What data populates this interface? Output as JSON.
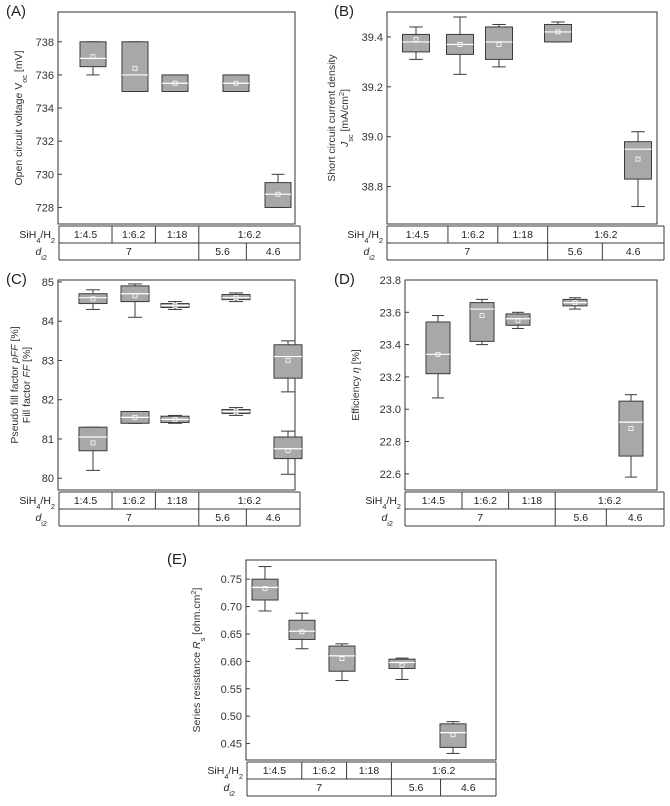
{
  "chart_data": [
    {
      "panel_label": "(A)",
      "type": "box",
      "ylabel_parts": [
        "Open circuit voltage V",
        "oc",
        " [mV]"
      ],
      "ylim": [
        727,
        739.8
      ],
      "yticks": [
        728,
        730,
        732,
        734,
        736,
        738
      ],
      "tick_decimals": 0,
      "table": {
        "row1_label": [
          "SiH",
          "4",
          "/H",
          "2"
        ],
        "row1_cells": [
          "1:4.5",
          "1:6.2",
          "1:18",
          "1:6.2"
        ],
        "row2_label": [
          "d",
          "i2"
        ],
        "row2_cells": [
          "7",
          "5.6",
          "4.6"
        ]
      },
      "groups": [
        {
          "category": "1:4.5 / 7",
          "whisker_low": 736,
          "q1": 736.5,
          "median": 737,
          "q3": 738,
          "whisker_high": 738,
          "mean": 737.1
        },
        {
          "category": "1:6.2 / 7",
          "whisker_low": 735,
          "q1": 735,
          "median": 736,
          "q3": 738,
          "whisker_high": 738,
          "mean": 736.4
        },
        {
          "category": "1:18 / 7",
          "whisker_low": 735,
          "q1": 735,
          "median": 735.5,
          "q3": 736,
          "whisker_high": 736,
          "mean": 735.5
        },
        {
          "category": "1:6.2 / 5.6",
          "whisker_low": 735,
          "q1": 735,
          "median": 735.5,
          "q3": 736,
          "whisker_high": 736,
          "mean": 735.5
        },
        {
          "category": "1:6.2 / 4.6",
          "whisker_low": 728,
          "q1": 728,
          "median": 728.8,
          "q3": 729.5,
          "whisker_high": 730,
          "mean": 728.8
        }
      ]
    },
    {
      "panel_label": "(B)",
      "type": "box",
      "ylabel_parts": [
        "Short circuit current density",
        "J",
        "sc",
        " [mA/cm",
        "2",
        "]"
      ],
      "ylim": [
        38.65,
        39.5
      ],
      "yticks": [
        38.8,
        39.0,
        39.2,
        39.4
      ],
      "tick_decimals": 1,
      "table": {
        "row1_label": [
          "SiH",
          "4",
          "/H",
          "2"
        ],
        "row1_cells": [
          "1:4.5",
          "1:6.2",
          "1:18",
          "1:6.2"
        ],
        "row2_label": [
          "d",
          "i2"
        ],
        "row2_cells": [
          "7",
          "5.6",
          "4.6"
        ]
      },
      "groups": [
        {
          "category": "1:4.5 / 7",
          "whisker_low": 39.31,
          "q1": 39.34,
          "median": 39.38,
          "q3": 39.41,
          "whisker_high": 39.44,
          "mean": 39.39
        },
        {
          "category": "1:6.2 / 7",
          "whisker_low": 39.25,
          "q1": 39.33,
          "median": 39.37,
          "q3": 39.41,
          "whisker_high": 39.48,
          "mean": 39.37
        },
        {
          "category": "1:18 / 7",
          "whisker_low": 39.28,
          "q1": 39.31,
          "median": 39.38,
          "q3": 39.44,
          "whisker_high": 39.45,
          "mean": 39.37
        },
        {
          "category": "1:6.2 / 5.6",
          "whisker_low": 39.38,
          "q1": 39.38,
          "median": 39.42,
          "q3": 39.45,
          "whisker_high": 39.46,
          "mean": 39.42
        },
        {
          "category": "1:6.2 / 4.6",
          "whisker_low": 38.72,
          "q1": 38.83,
          "median": 38.95,
          "q3": 38.98,
          "whisker_high": 39.02,
          "mean": 38.91
        }
      ]
    },
    {
      "panel_label": "(C)",
      "type": "box",
      "ylabel_parts": [
        "Pseudo fill factor ",
        "pFF",
        " [%]"
      ],
      "ylabel2_parts": [
        "Fill factor ",
        "FF",
        " [%]"
      ],
      "ylim": [
        79.7,
        85.05
      ],
      "yticks": [
        80,
        81,
        82,
        83,
        84,
        85
      ],
      "tick_decimals": 0,
      "table": {
        "row1_label": [
          "SiH",
          "4",
          "/H",
          "2"
        ],
        "row1_cells": [
          "1:4.5",
          "1:6.2",
          "1:18",
          "1:6.2"
        ],
        "row2_label": [
          "d",
          "i2"
        ],
        "row2_cells": [
          "7",
          "5.6",
          "4.6"
        ]
      },
      "groups": [
        {
          "category": "1:4.5 / 7 (pFF)",
          "whisker_low": 84.3,
          "q1": 84.45,
          "median": 84.6,
          "q3": 84.7,
          "whisker_high": 84.8,
          "mean": 84.57
        },
        {
          "category": "1:6.2 / 7 (pFF)",
          "whisker_low": 84.1,
          "q1": 84.5,
          "median": 84.7,
          "q3": 84.9,
          "whisker_high": 84.95,
          "mean": 84.65
        },
        {
          "category": "1:18 / 7 (pFF)",
          "whisker_low": 84.3,
          "q1": 84.35,
          "median": 84.4,
          "q3": 84.45,
          "whisker_high": 84.5,
          "mean": 84.4
        },
        {
          "category": "1:6.2 / 5.6 (pFF)",
          "whisker_low": 84.5,
          "q1": 84.55,
          "median": 84.6,
          "q3": 84.68,
          "whisker_high": 84.72,
          "mean": 84.6
        },
        {
          "category": "1:6.2 / 4.6 (pFF)",
          "whisker_low": 82.2,
          "q1": 82.55,
          "median": 83.1,
          "q3": 83.4,
          "whisker_high": 83.5,
          "mean": 83.0
        },
        {
          "category": "1:4.5 / 7 (FF)",
          "whisker_low": 80.2,
          "q1": 80.7,
          "median": 81.05,
          "q3": 81.3,
          "whisker_high": 81.3,
          "mean": 80.9
        },
        {
          "category": "1:6.2 / 7 (FF)",
          "whisker_low": 81.4,
          "q1": 81.4,
          "median": 81.55,
          "q3": 81.7,
          "whisker_high": 81.7,
          "mean": 81.55
        },
        {
          "category": "1:18 / 7 (FF)",
          "whisker_low": 81.4,
          "q1": 81.42,
          "median": 81.5,
          "q3": 81.58,
          "whisker_high": 81.6,
          "mean": 81.5
        },
        {
          "category": "1:6.2 / 5.6 (FF)",
          "whisker_low": 81.6,
          "q1": 81.65,
          "median": 81.7,
          "q3": 81.75,
          "whisker_high": 81.8,
          "mean": 81.7
        },
        {
          "category": "1:6.2 / 4.6 (FF)",
          "whisker_low": 80.1,
          "q1": 80.5,
          "median": 80.75,
          "q3": 81.05,
          "whisker_high": 81.2,
          "mean": 80.7
        }
      ]
    },
    {
      "panel_label": "(D)",
      "type": "box",
      "ylabel_parts": [
        "Efficiency ",
        "η",
        " [%]"
      ],
      "ylim": [
        22.5,
        23.8
      ],
      "yticks": [
        22.6,
        22.8,
        23.0,
        23.2,
        23.4,
        23.6,
        23.8
      ],
      "tick_decimals": 1,
      "table": {
        "row1_label": [
          "SiH",
          "4",
          "/H",
          "2"
        ],
        "row1_cells": [
          "1:4.5",
          "1:6.2",
          "1:18",
          "1:6.2"
        ],
        "row2_label": [
          "d",
          "i2"
        ],
        "row2_cells": [
          "7",
          "5.6",
          "4.6"
        ]
      },
      "groups": [
        {
          "category": "1:4.5 / 7",
          "whisker_low": 23.07,
          "q1": 23.22,
          "median": 23.34,
          "q3": 23.54,
          "whisker_high": 23.58,
          "mean": 23.34
        },
        {
          "category": "1:6.2 / 7",
          "whisker_low": 23.4,
          "q1": 23.42,
          "median": 23.62,
          "q3": 23.66,
          "whisker_high": 23.68,
          "mean": 23.58
        },
        {
          "category": "1:18 / 7",
          "whisker_low": 23.5,
          "q1": 23.52,
          "median": 23.56,
          "q3": 23.59,
          "whisker_high": 23.6,
          "mean": 23.55
        },
        {
          "category": "1:6.2 / 5.6",
          "whisker_low": 23.62,
          "q1": 23.64,
          "median": 23.66,
          "q3": 23.68,
          "whisker_high": 23.69,
          "mean": 23.66
        },
        {
          "category": "1:6.2 / 4.6",
          "whisker_low": 22.58,
          "q1": 22.71,
          "median": 22.92,
          "q3": 23.05,
          "whisker_high": 23.09,
          "mean": 22.88
        }
      ]
    },
    {
      "panel_label": "(E)",
      "type": "box",
      "ylabel_parts": [
        "Series resistance ",
        "R",
        "s",
        " [ohm.cm",
        "2",
        "]"
      ],
      "ylim": [
        0.42,
        0.785
      ],
      "yticks": [
        0.45,
        0.5,
        0.55,
        0.6,
        0.65,
        0.7,
        0.75
      ],
      "tick_decimals": 2,
      "table": {
        "row1_label": [
          "SiH",
          "4",
          "/H",
          "2"
        ],
        "row1_cells": [
          "1:4.5",
          "1:6.2",
          "1:18",
          "1:6.2"
        ],
        "row2_label": [
          "d",
          "i2"
        ],
        "row2_cells": [
          "7",
          "5.6",
          "4.6"
        ]
      },
      "groups": [
        {
          "category": "1:4.5 / 7",
          "whisker_low": 0.692,
          "q1": 0.712,
          "median": 0.735,
          "q3": 0.75,
          "whisker_high": 0.773,
          "mean": 0.733
        },
        {
          "category": "1:6.2 / 7",
          "whisker_low": 0.623,
          "q1": 0.64,
          "median": 0.655,
          "q3": 0.675,
          "whisker_high": 0.688,
          "mean": 0.654
        },
        {
          "category": "1:18 / 7",
          "whisker_low": 0.565,
          "q1": 0.582,
          "median": 0.61,
          "q3": 0.628,
          "whisker_high": 0.632,
          "mean": 0.605
        },
        {
          "category": "1:6.2 / 5.6",
          "whisker_low": 0.567,
          "q1": 0.587,
          "median": 0.598,
          "q3": 0.604,
          "whisker_high": 0.606,
          "mean": 0.593
        },
        {
          "category": "1:6.2 / 4.6",
          "whisker_low": 0.432,
          "q1": 0.443,
          "median": 0.47,
          "q3": 0.486,
          "whisker_high": 0.49,
          "mean": 0.466
        }
      ]
    }
  ]
}
